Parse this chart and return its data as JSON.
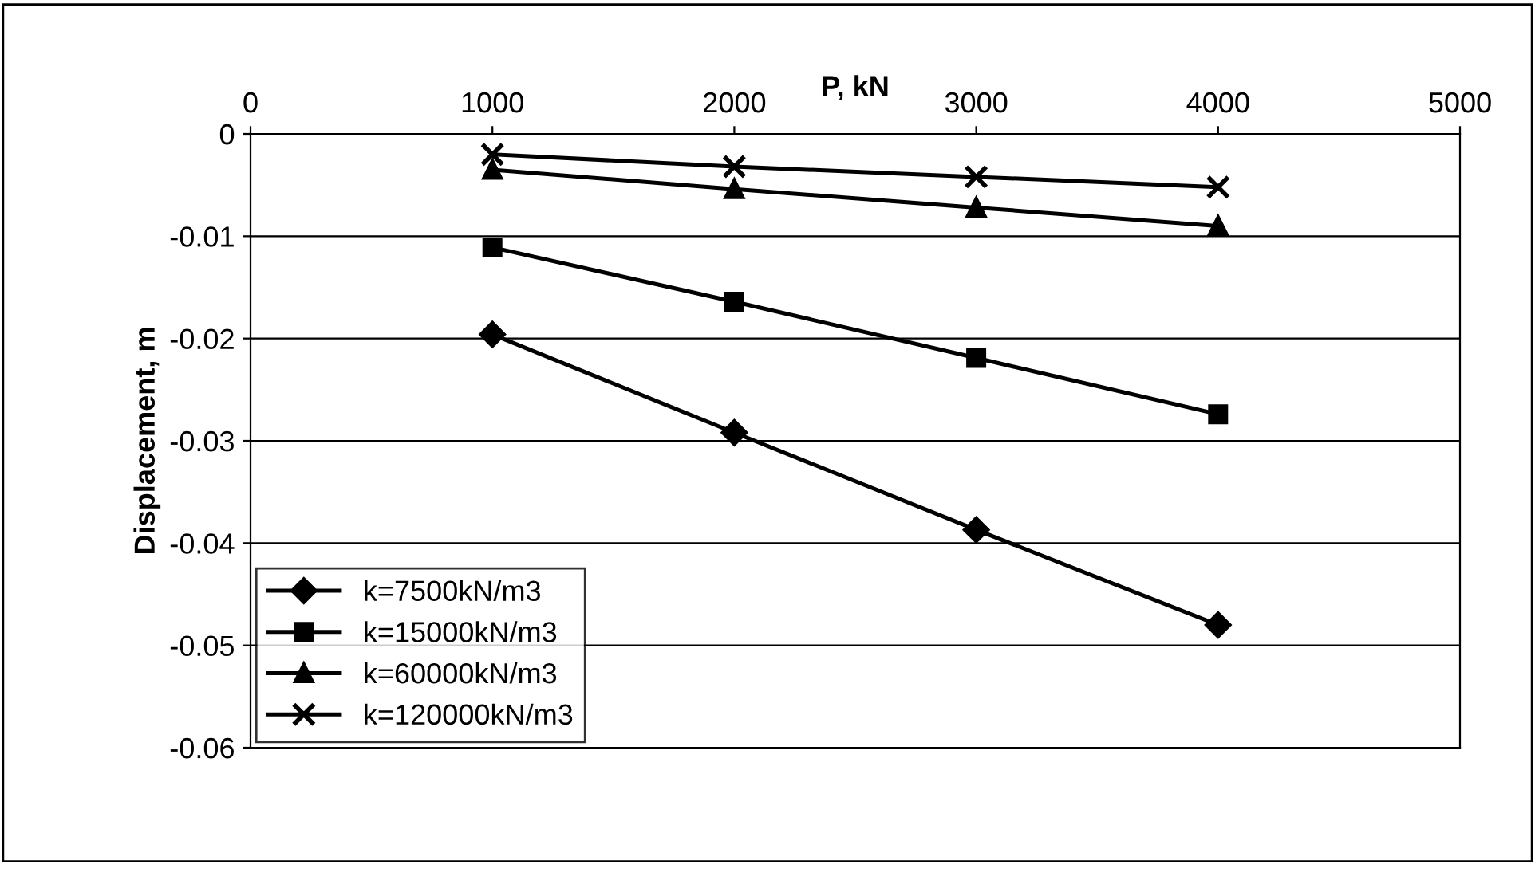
{
  "chart_data": {
    "type": "line",
    "xlabel": "P, kN",
    "ylabel": "Displacement, m",
    "x": [
      1000,
      2000,
      3000,
      4000
    ],
    "series": [
      {
        "name": "k=7500kN/m3",
        "color": "#000000",
        "marker": "diamond",
        "values": [
          -0.0196,
          -0.0292,
          -0.0387,
          -0.048
        ]
      },
      {
        "name": "k=15000kN/m3",
        "color": "#000000",
        "marker": "square",
        "values": [
          -0.0111,
          -0.0164,
          -0.0219,
          -0.0274
        ]
      },
      {
        "name": "k=60000kN/m3",
        "color": "#000000",
        "marker": "triangle",
        "values": [
          -0.0035,
          -0.0054,
          -0.0072,
          -0.009
        ]
      },
      {
        "name": "k=120000kN/m3",
        "color": "#000000",
        "marker": "cross",
        "values": [
          -0.002,
          -0.0032,
          -0.0042,
          -0.0052
        ]
      }
    ],
    "xlim": [
      0,
      5000
    ],
    "xticks": [
      0,
      1000,
      2000,
      3000,
      4000,
      5000
    ],
    "ylim": [
      -0.06,
      0
    ],
    "yticks": [
      0,
      -0.01,
      -0.02,
      -0.03,
      -0.04,
      -0.05,
      -0.06
    ],
    "grid": "y",
    "legend": "bottom left",
    "line_style": "solid"
  }
}
